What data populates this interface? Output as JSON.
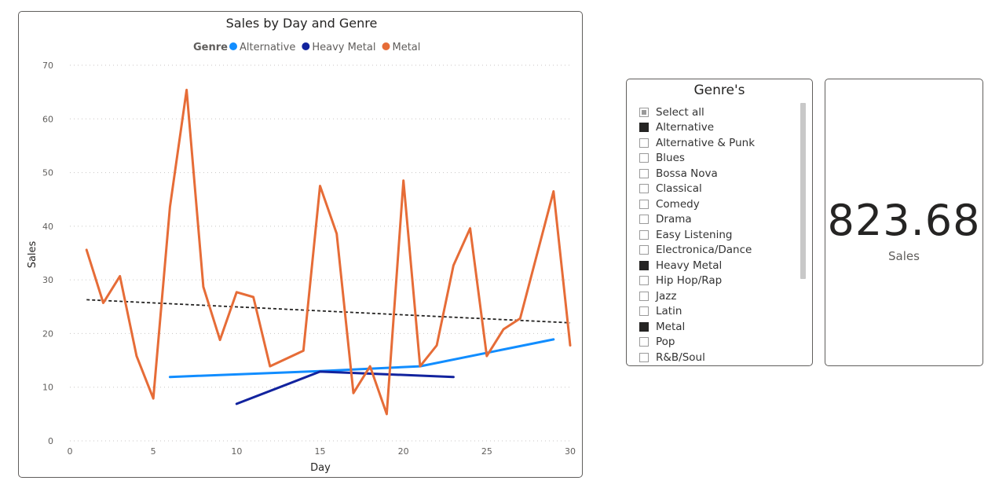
{
  "chart_data": {
    "type": "line",
    "title": "Sales by Day and Genre",
    "legend_title": "Genre",
    "legend_position": "top-center",
    "xlabel": "Day",
    "ylabel": "Sales",
    "xlim": [
      0,
      30
    ],
    "ylim": [
      0,
      70
    ],
    "x_ticks": [
      "0",
      "5",
      "10",
      "15",
      "20",
      "25",
      "30"
    ],
    "y_ticks": [
      "0",
      "10",
      "20",
      "30",
      "40",
      "50",
      "60",
      "70"
    ],
    "grid": true,
    "series": [
      {
        "name": "Alternative",
        "color": "#118dff",
        "x": [
          6,
          15,
          21,
          29
        ],
        "y": [
          11.9,
          13.0,
          13.9,
          18.9
        ]
      },
      {
        "name": "Heavy Metal",
        "color": "#12239e",
        "x": [
          10,
          15,
          23
        ],
        "y": [
          6.9,
          12.9,
          11.9
        ]
      },
      {
        "name": "Metal",
        "color": "#e66c37",
        "x": [
          1,
          2,
          3,
          4,
          5,
          6,
          7,
          8,
          9,
          10,
          11,
          12,
          14,
          15,
          16,
          17,
          18,
          19,
          20,
          21,
          22,
          23,
          24,
          25,
          26,
          27,
          29,
          30
        ],
        "y": [
          35.6,
          25.7,
          30.7,
          15.8,
          7.9,
          43.6,
          65.4,
          28.7,
          18.8,
          27.7,
          26.8,
          13.9,
          16.8,
          47.5,
          38.6,
          8.9,
          13.9,
          5.0,
          48.5,
          13.9,
          17.8,
          32.7,
          39.6,
          15.8,
          20.8,
          22.8,
          46.5,
          17.8
        ]
      }
    ],
    "trendline": {
      "style": "dashed",
      "color": "#252423",
      "x": [
        1,
        30
      ],
      "y": [
        26.3,
        22.0
      ]
    }
  },
  "slicer": {
    "title": "Genre's",
    "items": [
      {
        "label": "Select all",
        "state": "partial"
      },
      {
        "label": "Alternative",
        "state": "checked"
      },
      {
        "label": "Alternative & Punk",
        "state": "unchecked"
      },
      {
        "label": "Blues",
        "state": "unchecked"
      },
      {
        "label": "Bossa Nova",
        "state": "unchecked"
      },
      {
        "label": "Classical",
        "state": "unchecked"
      },
      {
        "label": "Comedy",
        "state": "unchecked"
      },
      {
        "label": "Drama",
        "state": "unchecked"
      },
      {
        "label": "Easy Listening",
        "state": "unchecked"
      },
      {
        "label": "Electronica/Dance",
        "state": "unchecked"
      },
      {
        "label": "Heavy Metal",
        "state": "checked"
      },
      {
        "label": "Hip Hop/Rap",
        "state": "unchecked"
      },
      {
        "label": "Jazz",
        "state": "unchecked"
      },
      {
        "label": "Latin",
        "state": "unchecked"
      },
      {
        "label": "Metal",
        "state": "checked"
      },
      {
        "label": "Pop",
        "state": "unchecked"
      },
      {
        "label": "R&B/Soul",
        "state": "unchecked"
      }
    ]
  },
  "kpi": {
    "value": "823.68",
    "label": "Sales"
  }
}
